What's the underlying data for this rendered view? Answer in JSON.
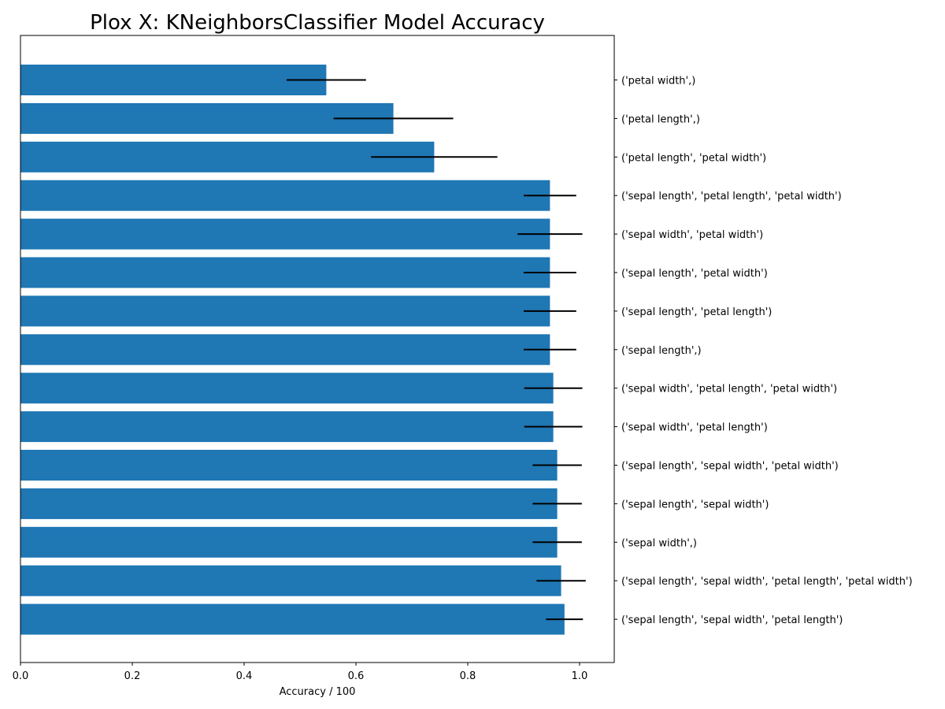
{
  "chart_data": {
    "type": "bar",
    "orientation": "horizontal",
    "title": "Plox X: KNeighborsClassifier Model Accuracy",
    "xlabel": "Accuracy / 100",
    "ylabel": "",
    "xlim": [
      0.0,
      1.062
    ],
    "xticks": [
      {
        "value": 0.0,
        "label": "0.0"
      },
      {
        "value": 0.2,
        "label": "0.2"
      },
      {
        "value": 0.4,
        "label": "0.4"
      },
      {
        "value": 0.6,
        "label": "0.6"
      },
      {
        "value": 0.8,
        "label": "0.8"
      },
      {
        "value": 1.0,
        "label": "1.0"
      }
    ],
    "y_tick_position": "right",
    "grid": false,
    "legend": "none",
    "bar_color": "#1f77b4",
    "errorbar_color": "#000000",
    "categories": [
      "('petal width',)",
      "('petal length',)",
      "('petal length', 'petal width')",
      "('sepal length', 'petal length', 'petal width')",
      "('sepal width', 'petal width')",
      "('sepal length', 'petal width')",
      "('sepal length', 'petal length')",
      "('sepal length',)",
      "('sepal width', 'petal length', 'petal width')",
      "('sepal width', 'petal length')",
      "('sepal length', 'sepal width', 'petal width')",
      "('sepal length', 'sepal width')",
      "('sepal width',)",
      "('sepal length', 'sepal width', 'petal length', 'petal width')",
      "('sepal length', 'sepal width', 'petal length')"
    ],
    "values": [
      0.547,
      0.667,
      0.74,
      0.947,
      0.947,
      0.947,
      0.947,
      0.947,
      0.953,
      0.953,
      0.96,
      0.96,
      0.96,
      0.967,
      0.973
    ],
    "errors": [
      0.071,
      0.107,
      0.113,
      0.047,
      0.058,
      0.047,
      0.047,
      0.047,
      0.052,
      0.052,
      0.044,
      0.044,
      0.044,
      0.044,
      0.033
    ]
  }
}
